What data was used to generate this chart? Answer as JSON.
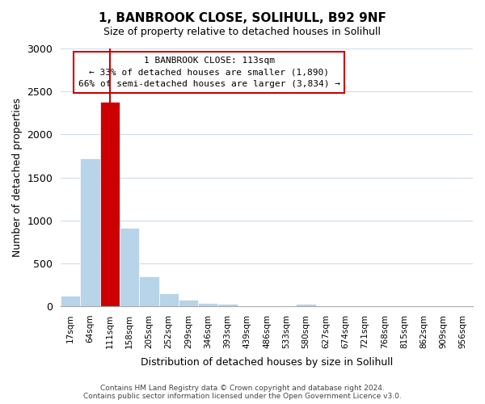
{
  "title": "1, BANBROOK CLOSE, SOLIHULL, B92 9NF",
  "subtitle": "Size of property relative to detached houses in Solihull",
  "xlabel": "Distribution of detached houses by size in Solihull",
  "ylabel": "Number of detached properties",
  "bar_color": "#b8d4e8",
  "highlight_color": "#cc0000",
  "bin_labels": [
    "17sqm",
    "64sqm",
    "111sqm",
    "158sqm",
    "205sqm",
    "252sqm",
    "299sqm",
    "346sqm",
    "393sqm",
    "439sqm",
    "486sqm",
    "533sqm",
    "580sqm",
    "627sqm",
    "674sqm",
    "721sqm",
    "768sqm",
    "815sqm",
    "862sqm",
    "909sqm",
    "956sqm"
  ],
  "counts": [
    120,
    1720,
    2380,
    910,
    345,
    150,
    80,
    40,
    30,
    0,
    0,
    0,
    25,
    0,
    0,
    0,
    0,
    0,
    0,
    0,
    0
  ],
  "highlight_bin_index": 2,
  "annotation_title": "1 BANBROOK CLOSE: 113sqm",
  "annotation_line1": "← 33% of detached houses are smaller (1,890)",
  "annotation_line2": "66% of semi-detached houses are larger (3,834) →",
  "ylim": [
    0,
    3000
  ],
  "yticks": [
    0,
    500,
    1000,
    1500,
    2000,
    2500,
    3000
  ],
  "footer_line1": "Contains HM Land Registry data © Crown copyright and database right 2024.",
  "footer_line2": "Contains public sector information licensed under the Open Government Licence v3.0.",
  "background_color": "#ffffff",
  "grid_color": "#d0dce8"
}
